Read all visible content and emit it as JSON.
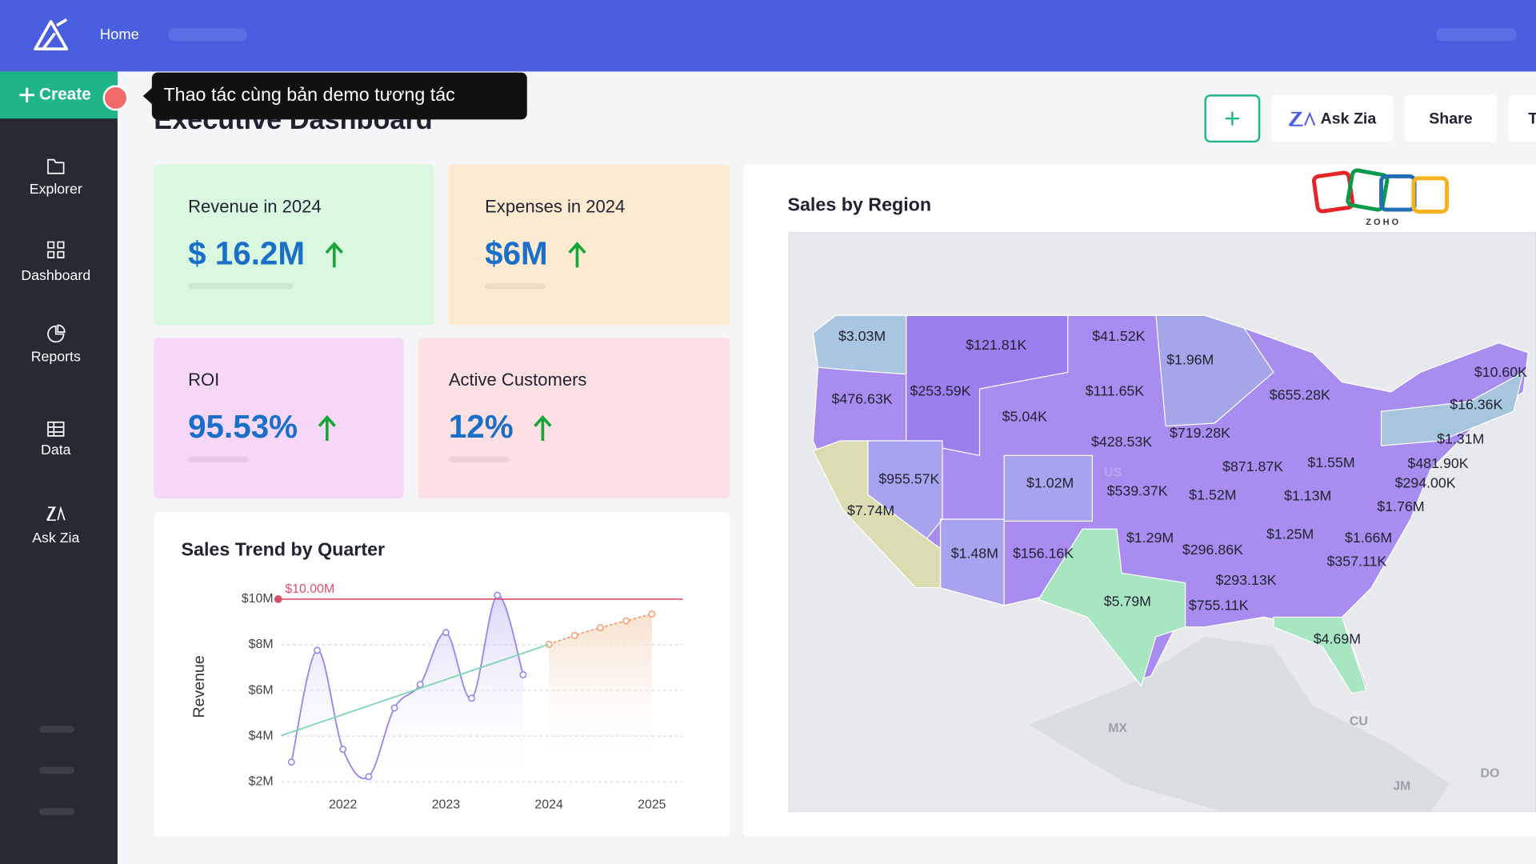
{
  "topbar": {
    "home": "Home"
  },
  "sidebar": {
    "create": "Create",
    "items": [
      "Explorer",
      "Dashboard",
      "Reports",
      "Data",
      "Ask Zia"
    ]
  },
  "tooltip": "Thao tác cùng bản demo tương tác",
  "header": {
    "title": "Executive Dashboard",
    "buttons": [
      "Ask Zia",
      "Share",
      "T"
    ]
  },
  "kpis": [
    {
      "label": "Revenue in 2024",
      "value": "$ 16.2M"
    },
    {
      "label": "Expenses in 2024",
      "value": "$6M"
    },
    {
      "label": "ROI",
      "value": "95.53%"
    },
    {
      "label": "Active Customers",
      "value": "12%"
    }
  ],
  "sales_trend": {
    "type": "line",
    "title": "Sales Trend by Quarter",
    "y_label": "Revenue",
    "series": [
      {
        "color": "#8f8be8",
        "x": [
          2021.5,
          2021.75,
          2022,
          2022.25,
          2022.5,
          2022.75,
          2023,
          2023.25,
          2023.5,
          2023.75
        ],
        "values": [
          2.86,
          7.76,
          3.42,
          2.22,
          5.23,
          6.26,
          8.54,
          5.66,
          10.17,
          6.69
        ]
      },
      {
        "color": "#f0a070",
        "x": [
          2024,
          2024.25,
          2024.5,
          2024.75,
          2025
        ],
        "values": [
          8.02,
          8.41,
          8.75,
          9.05,
          9.35
        ]
      },
      {
        "color": "#7fd6b4",
        "x": [
          2021.4,
          2024
        ],
        "values": [
          4.02,
          8.02
        ]
      }
    ],
    "reference": {
      "value": 10,
      "label": "$10.00M"
    },
    "xlim": [
      2021.4,
      2025.3
    ],
    "xticks": [
      2022,
      2023,
      2024,
      2025
    ],
    "ylim": [
      1.7,
      10.5
    ],
    "yticks": [
      {
        "value": 2,
        "label": "$2M"
      },
      {
        "value": 4,
        "label": "$4M"
      },
      {
        "value": 6,
        "label": "$6M"
      },
      {
        "value": 8,
        "label": "$8M"
      },
      {
        "value": 10,
        "label": "$10M"
      }
    ],
    "grid": true
  },
  "sales_by_region": {
    "title": "Sales by Region",
    "region_labels": [
      "$3.03M",
      "$121.81K",
      "$41.52K",
      "$1.96M",
      "$10.60K",
      "$476.63K",
      "$253.59K",
      "$111.65K",
      "$655.28K",
      "$16.36K",
      "$5.04K",
      "$428.53K",
      "$719.28K",
      "$1.31M",
      "$871.87K",
      "$1.55M",
      "$481.90K",
      "$955.57K",
      "$1.02M",
      "$539.37K",
      "$1.52M",
      "$1.13M",
      "$294.00K",
      "$7.74M",
      "$1.76M",
      "$1.29M",
      "$1.25M",
      "$1.66M",
      "$296.86K",
      "$1.48M",
      "$156.16K",
      "$357.11K",
      "$293.13K",
      "$5.79M",
      "$755.11K",
      "$4.69M"
    ],
    "place_labels": [
      "US",
      "MX",
      "CU",
      "JM",
      "DO"
    ]
  },
  "logo": "Z O H O"
}
